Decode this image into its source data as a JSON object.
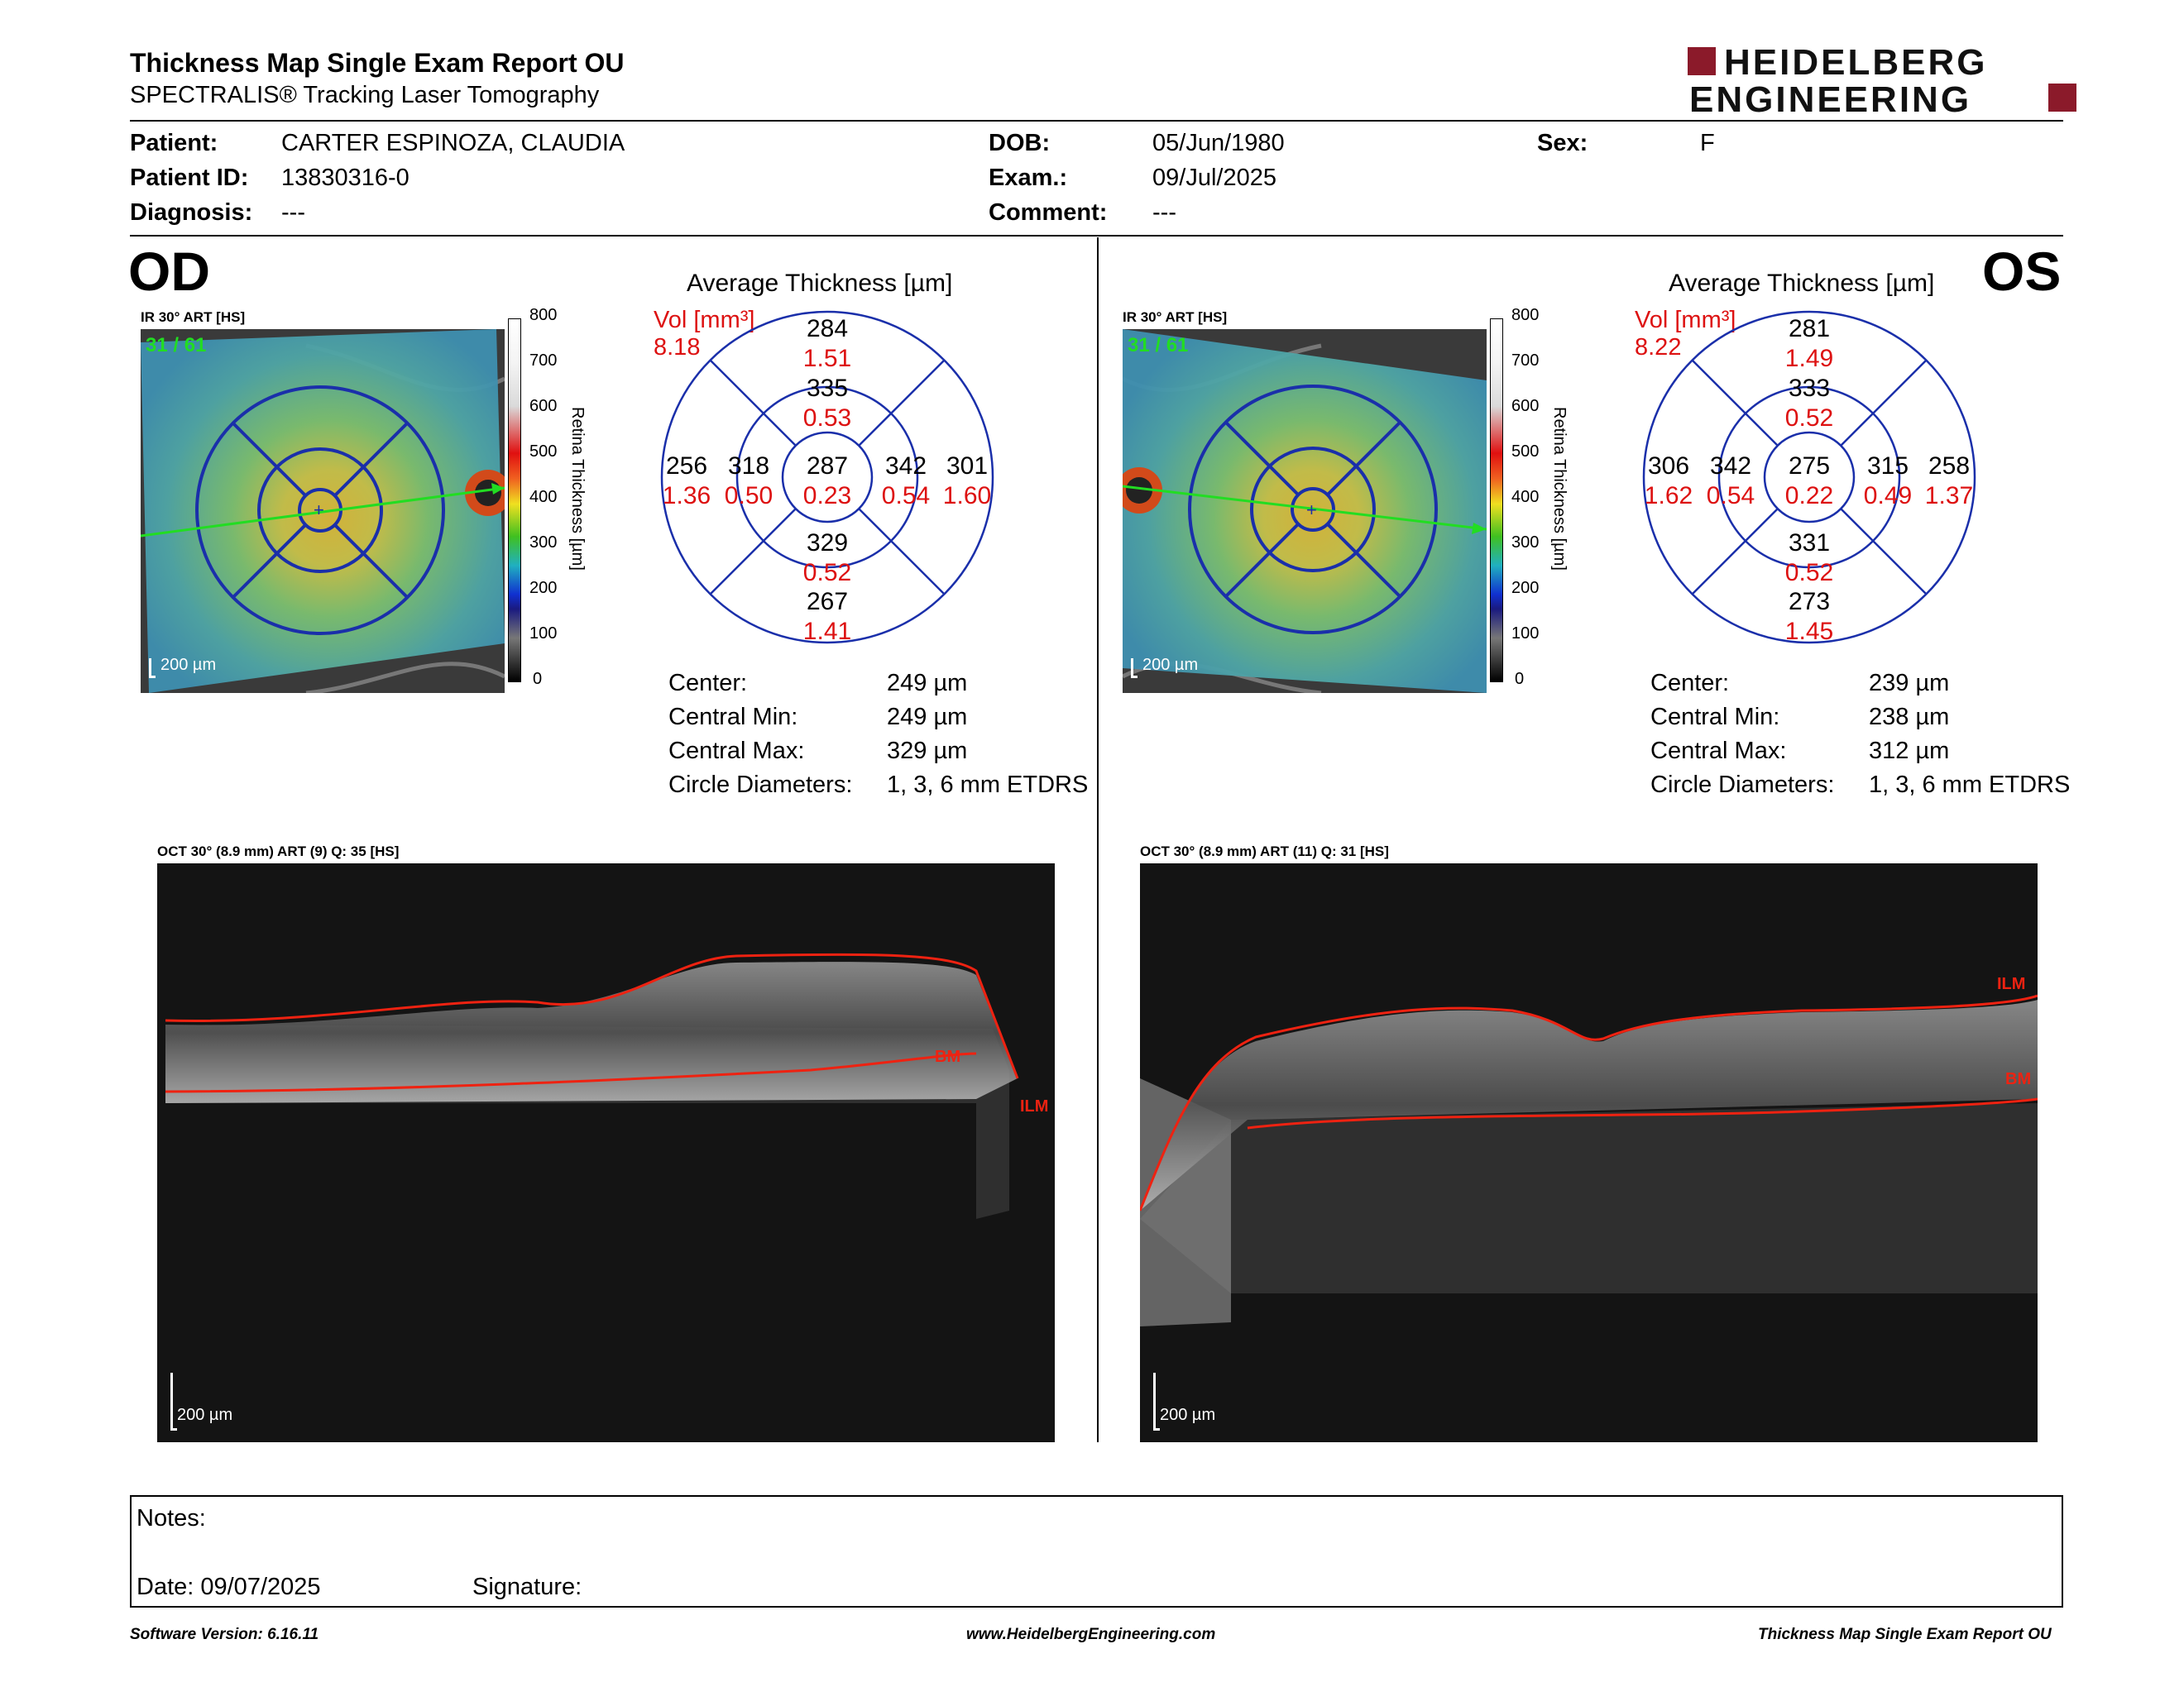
{
  "header": {
    "title": "Thickness Map Single Exam Report OU",
    "subtitle": "SPECTRALIS® Tracking Laser Tomography",
    "logo_line1": "HEIDELBERG",
    "logo_line2": "ENGINEERING"
  },
  "patient": {
    "patient_label": "Patient:",
    "patient_value": "CARTER ESPINOZA, CLAUDIA",
    "id_label": "Patient ID:",
    "id_value": "13830316-0",
    "diagnosis_label": "Diagnosis:",
    "diagnosis_value": "---",
    "dob_label": "DOB:",
    "dob_value": "05/Jun/1980",
    "exam_label": "Exam.:",
    "exam_value": "09/Jul/2025",
    "comment_label": "Comment:",
    "comment_value": "---",
    "sex_label": "Sex:",
    "sex_value": "F"
  },
  "od": {
    "eye": "OD",
    "ir_caption": "IR 30° ART [HS]",
    "frame": "31 / 61",
    "scale": "200 µm",
    "avg_title": "Average Thickness [µm]",
    "vol_label": "Vol [mm³]",
    "vol_value": "8.18",
    "grid": {
      "center_t": "287",
      "center_v": "0.23",
      "inner_sup_t": "335",
      "inner_sup_v": "0.53",
      "inner_inf_t": "329",
      "inner_inf_v": "0.52",
      "inner_left_t": "318",
      "inner_left_v": "0.50",
      "inner_right_t": "342",
      "inner_right_v": "0.54",
      "outer_sup_t": "284",
      "outer_sup_v": "1.51",
      "outer_inf_t": "267",
      "outer_inf_v": "1.41",
      "outer_left_t": "256",
      "outer_left_v": "1.36",
      "outer_right_t": "301",
      "outer_right_v": "1.60"
    },
    "stats": {
      "center_label": "Center:",
      "center_value": "249 µm",
      "min_label": "Central Min:",
      "min_value": "249 µm",
      "max_label": "Central Max:",
      "max_value": "329 µm",
      "diam_label": "Circle Diameters:",
      "diam_value": "1, 3, 6 mm ETDRS"
    },
    "oct_caption": "OCT 30° (8.9 mm) ART (9) Q: 35 [HS]",
    "oct_scale": "200 µm",
    "ilm": "ILM",
    "bm": "BM"
  },
  "os": {
    "eye": "OS",
    "ir_caption": "IR 30° ART [HS]",
    "frame": "31 / 61",
    "scale": "200 µm",
    "avg_title": "Average Thickness [µm]",
    "vol_label": "Vol [mm³]",
    "vol_value": "8.22",
    "grid": {
      "center_t": "275",
      "center_v": "0.22",
      "inner_sup_t": "333",
      "inner_sup_v": "0.52",
      "inner_inf_t": "331",
      "inner_inf_v": "0.52",
      "inner_left_t": "342",
      "inner_left_v": "0.54",
      "inner_right_t": "315",
      "inner_right_v": "0.49",
      "outer_sup_t": "281",
      "outer_sup_v": "1.49",
      "outer_inf_t": "273",
      "outer_inf_v": "1.45",
      "outer_left_t": "306",
      "outer_left_v": "1.62",
      "outer_right_t": "258",
      "outer_right_v": "1.37"
    },
    "stats": {
      "center_label": "Center:",
      "center_value": "239 µm",
      "min_label": "Central Min:",
      "min_value": "238 µm",
      "max_label": "Central Max:",
      "max_value": "312 µm",
      "diam_label": "Circle Diameters:",
      "diam_value": "1, 3, 6 mm ETDRS"
    },
    "oct_caption": "OCT 30° (8.9 mm) ART (11) Q: 31 [HS]",
    "oct_scale": "200 µm",
    "ilm": "ILM",
    "bm": "BM"
  },
  "colorbar": {
    "title": "Retina Thickness [µm]",
    "ticks": [
      "800",
      "700",
      "600",
      "500",
      "400",
      "300",
      "200",
      "100",
      "0"
    ]
  },
  "notes": {
    "notes_label": "Notes:",
    "date_label": "Date: 09/07/2025",
    "signature_label": "Signature:"
  },
  "footer": {
    "software": "Software Version: 6.16.11",
    "website": "www.HeidelbergEngineering.com",
    "report": "Thickness Map Single Exam Report OU"
  },
  "colors": {
    "accent_red": "#8b1a2a",
    "vol_red": "#d11",
    "grid_blue": "#1a2faa",
    "arrow_green": "#22dd22"
  }
}
